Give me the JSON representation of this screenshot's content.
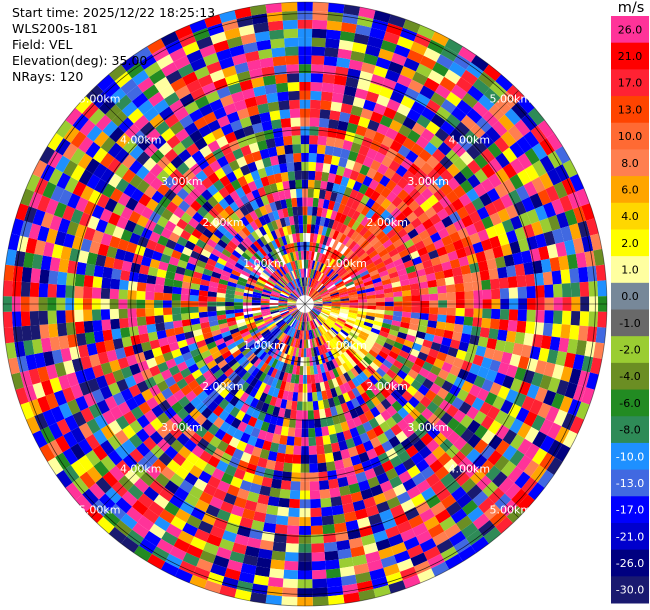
{
  "header": {
    "start_time": "Start time: 2025/12/22 18:25:13",
    "site": "WLS200s-181",
    "field": "Field: VEL",
    "elevation": "Elevation(deg): 35.00",
    "nrays": "NRays: 120"
  },
  "colorbar": {
    "unit": "m/s",
    "bins": [
      {
        "label": "26.0",
        "color": "#ff3399"
      },
      {
        "label": "21.0",
        "color": "#ff0000"
      },
      {
        "label": "17.0",
        "color": "#ff2233"
      },
      {
        "label": "13.0",
        "color": "#ff4400"
      },
      {
        "label": "10.0",
        "color": "#ff6a33"
      },
      {
        "label": "8.0",
        "color": "#ff7f50"
      },
      {
        "label": "6.0",
        "color": "#ffa500"
      },
      {
        "label": "4.0",
        "color": "#ffd700"
      },
      {
        "label": "2.0",
        "color": "#ffff00"
      },
      {
        "label": "1.0",
        "color": "#ffffa0"
      },
      {
        "label": "0.0",
        "color": "#778899"
      },
      {
        "label": "-1.0",
        "color": "#696969"
      },
      {
        "label": "-2.0",
        "color": "#9acd32"
      },
      {
        "label": "-4.0",
        "color": "#6b8e23"
      },
      {
        "label": "-6.0",
        "color": "#228b22"
      },
      {
        "label": "-8.0",
        "color": "#2e8b57"
      },
      {
        "label": "-10.0",
        "color": "#1e90ff"
      },
      {
        "label": "-13.0",
        "color": "#4169e1"
      },
      {
        "label": "-17.0",
        "color": "#0000ff"
      },
      {
        "label": "-21.0",
        "color": "#0000cd"
      },
      {
        "label": "-26.0",
        "color": "#000080"
      },
      {
        "label": "-30.0",
        "color": "#191970"
      }
    ]
  },
  "chart_data": {
    "type": "heatmap",
    "projection": "polar-ppi",
    "field": "VEL",
    "unit": "m/s",
    "elevation_deg": 35.0,
    "n_rays": 120,
    "range_rings_km": [
      1.0,
      2.0,
      3.0,
      4.0,
      5.0
    ],
    "ring_labels": [
      "1.00km",
      "2.00km",
      "3.00km",
      "4.00km",
      "5.00km"
    ],
    "max_range_km": 5.2,
    "grid": true,
    "colorbar_position": "right",
    "color_levels": [
      -30.0,
      -26.0,
      -21.0,
      -17.0,
      -13.0,
      -10.0,
      -8.0,
      -6.0,
      -4.0,
      -2.0,
      -1.0,
      0.0,
      1.0,
      2.0,
      4.0,
      6.0,
      8.0,
      10.0,
      13.0,
      17.0,
      21.0,
      26.0
    ],
    "coherent_features": [
      {
        "description": "positive velocities (red/orange)",
        "azimuth_deg": [
          20,
          95
        ],
        "range_km": [
          0.0,
          3.3
        ]
      },
      {
        "description": "near-zero positive (yellow)",
        "azimuth_deg": [
          95,
          150
        ],
        "range_km": [
          0.3,
          1.3
        ]
      },
      {
        "description": "negative velocities (blue)",
        "azimuth_deg": [
          200,
          235
        ],
        "range_km": [
          0.3,
          2.5
        ]
      }
    ]
  }
}
